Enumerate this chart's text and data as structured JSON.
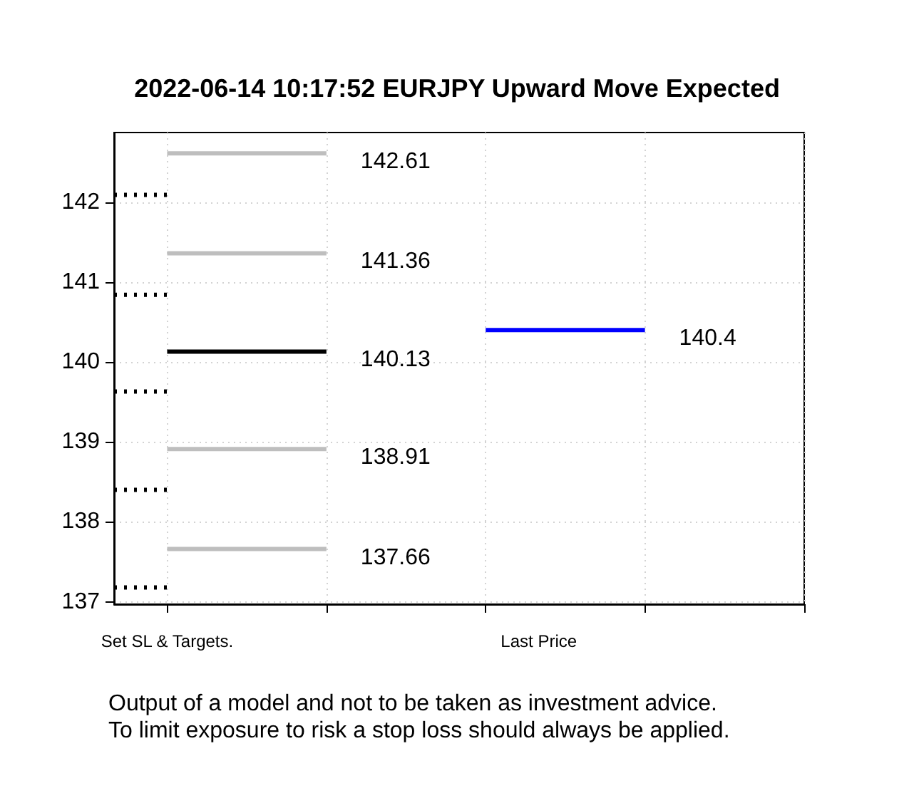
{
  "chart_data": {
    "type": "line",
    "title": "2022-06-14 10:17:52 EURJPY Upward Move Expected",
    "categories": [
      null,
      "Set SL & Targets.",
      null,
      null,
      null,
      null,
      null,
      null,
      "Last Price",
      null,
      null,
      null,
      null,
      null
    ],
    "ylim": [
      136.97,
      142.87
    ],
    "yticks": [
      137,
      138,
      139,
      140,
      141,
      142
    ],
    "grid": true,
    "marker": "none",
    "series": [
      {
        "color": "#bebebe",
        "values": [
          null,
          142.61,
          null,
          null,
          142.61,
          null,
          null,
          null,
          null,
          null,
          null,
          null,
          null,
          null
        ],
        "value_labels": [
          null,
          null,
          null,
          null,
          "142.61",
          null,
          null,
          null,
          null,
          null,
          null,
          null,
          null,
          null
        ]
      },
      {
        "color": "#bebebe",
        "values": [
          null,
          141.36,
          null,
          null,
          141.36,
          null,
          null,
          null,
          null,
          null,
          null,
          null,
          null,
          null
        ],
        "value_labels": [
          null,
          null,
          null,
          null,
          "141.36",
          null,
          null,
          null,
          null,
          null,
          null,
          null,
          null,
          null
        ]
      },
      {
        "color": "#000000",
        "values": [
          null,
          140.13,
          null,
          null,
          140.13,
          null,
          null,
          null,
          null,
          null,
          null,
          null,
          null,
          null
        ],
        "value_labels": [
          null,
          null,
          null,
          null,
          "140.13",
          null,
          null,
          null,
          null,
          null,
          null,
          null,
          null,
          null
        ]
      },
      {
        "color": "#bebebe",
        "values": [
          null,
          138.91,
          null,
          null,
          138.91,
          null,
          null,
          null,
          null,
          null,
          null,
          null,
          null,
          null
        ],
        "value_labels": [
          null,
          null,
          null,
          null,
          "138.91",
          null,
          null,
          null,
          null,
          null,
          null,
          null,
          null,
          null
        ]
      },
      {
        "color": "#bebebe",
        "values": [
          null,
          137.66,
          null,
          null,
          137.66,
          null,
          null,
          null,
          null,
          null,
          null,
          null,
          null,
          null
        ],
        "value_labels": [
          null,
          null,
          null,
          null,
          "137.66",
          null,
          null,
          null,
          null,
          null,
          null,
          null,
          null,
          null
        ]
      },
      {
        "color": "#0000ff",
        "values": [
          null,
          null,
          null,
          null,
          null,
          null,
          null,
          140.4,
          null,
          null,
          140.4,
          null,
          null,
          null
        ],
        "value_labels": [
          null,
          null,
          null,
          null,
          null,
          null,
          null,
          null,
          null,
          null,
          "140.4",
          null,
          null,
          null
        ]
      },
      {
        "color": "#000000",
        "values": [
          142.09,
          142.09,
          null,
          null,
          null,
          null,
          null,
          null,
          null,
          null,
          null,
          null,
          null,
          null
        ],
        "line_style": "dotted"
      },
      {
        "color": "#000000",
        "values": [
          140.84,
          140.84,
          null,
          null,
          null,
          null,
          null,
          null,
          null,
          null,
          null,
          null,
          null,
          null
        ],
        "line_style": "dotted"
      },
      {
        "color": "#000000",
        "values": [
          139.63,
          139.63,
          null,
          null,
          null,
          null,
          null,
          null,
          null,
          null,
          null,
          null,
          null,
          null
        ],
        "line_style": "dotted"
      },
      {
        "color": "#000000",
        "values": [
          138.4,
          138.4,
          null,
          null,
          null,
          null,
          null,
          null,
          null,
          null,
          null,
          null,
          null,
          null
        ],
        "line_style": "dotted"
      },
      {
        "color": "#000000",
        "values": [
          137.18,
          137.18,
          null,
          null,
          null,
          null,
          null,
          null,
          null,
          null,
          null,
          null,
          null,
          null
        ],
        "line_style": "dotted"
      }
    ],
    "annotations": [
      "Output of a model and not to be taken as investment advice.",
      "To limit exposure to risk a stop loss should always be applied."
    ]
  }
}
